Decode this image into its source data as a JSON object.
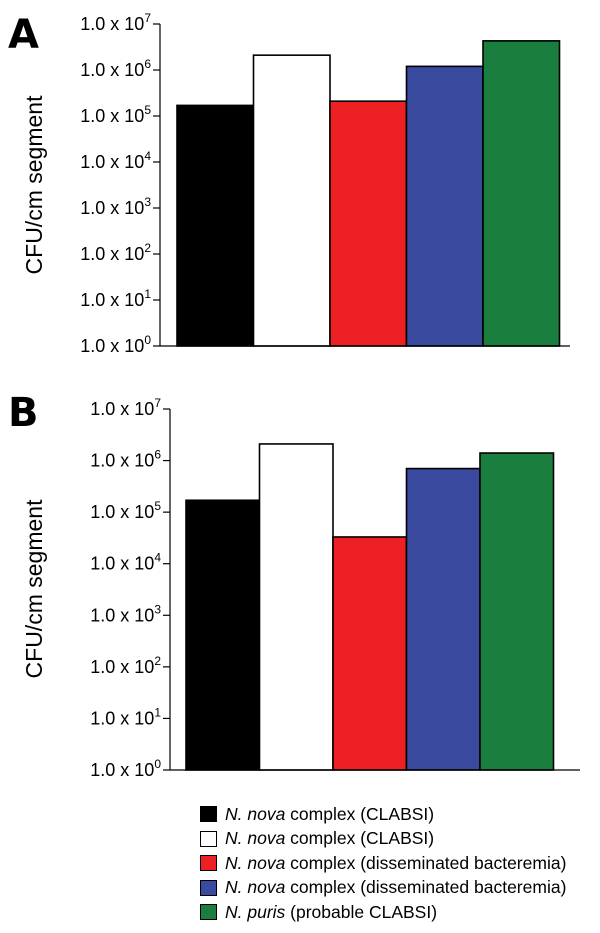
{
  "chart_data": [
    {
      "panel_label": "A",
      "type": "bar",
      "ylabel": "CFU/cm segment",
      "yscale": "log",
      "ylim": [
        1,
        10000000
      ],
      "yticks": [
        {
          "base": "1.0 x 10",
          "exp": "0"
        },
        {
          "base": "1.0 x 10",
          "exp": "1"
        },
        {
          "base": "1.0 x 10",
          "exp": "2"
        },
        {
          "base": "1.0 x 10",
          "exp": "3"
        },
        {
          "base": "1.0 x 10",
          "exp": "4"
        },
        {
          "base": "1.0 x 10",
          "exp": "5"
        },
        {
          "base": "1.0 x 10",
          "exp": "6"
        },
        {
          "base": "1.0 x 10",
          "exp": "7"
        }
      ],
      "values": [
        170000,
        2100000,
        210000,
        1200000,
        4300000
      ],
      "colors": [
        "#000000",
        "#ffffff",
        "#ed2024",
        "#3a4a9e",
        "#1a7f3e"
      ]
    },
    {
      "panel_label": "B",
      "type": "bar",
      "ylabel": "CFU/cm segment",
      "yscale": "log",
      "ylim": [
        1,
        10000000
      ],
      "yticks": [
        {
          "base": "1.0 x 10",
          "exp": "0"
        },
        {
          "base": "1.0 x 10",
          "exp": "1"
        },
        {
          "base": "1.0 x 10",
          "exp": "2"
        },
        {
          "base": "1.0 x 10",
          "exp": "3"
        },
        {
          "base": "1.0 x 10",
          "exp": "4"
        },
        {
          "base": "1.0 x 10",
          "exp": "5"
        },
        {
          "base": "1.0 x 10",
          "exp": "6"
        },
        {
          "base": "1.0 x 10",
          "exp": "7"
        }
      ],
      "values": [
        170000,
        2100000,
        33000,
        700000,
        1400000
      ],
      "colors": [
        "#000000",
        "#ffffff",
        "#ed2024",
        "#3a4a9e",
        "#1a7f3e"
      ]
    }
  ],
  "legend": [
    {
      "species": "N. nova",
      "rest": " complex (CLABSI)",
      "color": "#000000"
    },
    {
      "species": "N. nova",
      "rest": " complex (CLABSI)",
      "color": "#ffffff"
    },
    {
      "species": "N. nova",
      "rest": " complex (disseminated bacteremia)",
      "color": "#ed2024"
    },
    {
      "species": "N. nova",
      "rest": " complex (disseminated bacteremia)",
      "color": "#3a4a9e"
    },
    {
      "species": "N. puris",
      "rest": " (probable CLABSI)",
      "color": "#1a7f3e"
    }
  ]
}
